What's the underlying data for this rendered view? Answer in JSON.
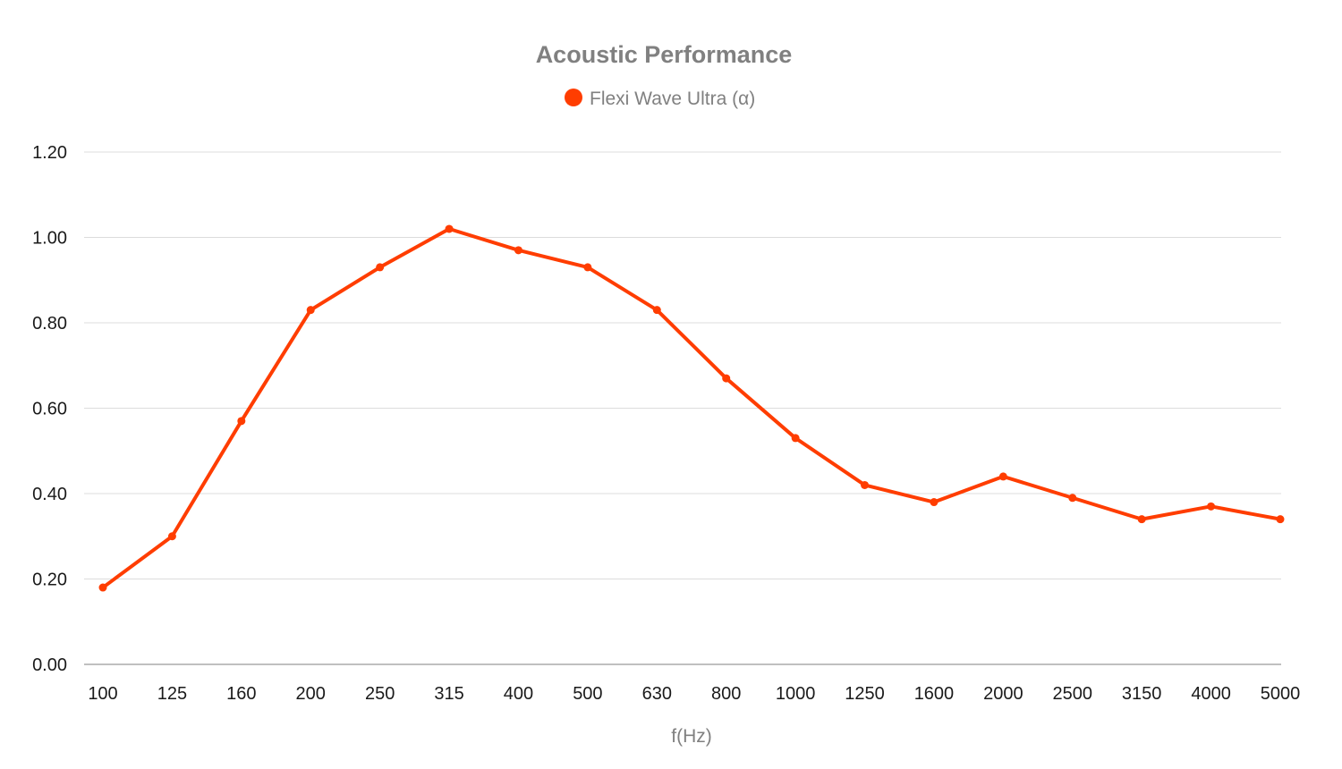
{
  "colors": {
    "series": "#ff3d00",
    "grid": "#dcdcdc",
    "text_muted": "#808080",
    "text": "#1a1a1a"
  },
  "chart_data": {
    "type": "line",
    "title": "Acoustic Performance",
    "xlabel": "f(Hz)",
    "ylabel": "",
    "categories": [
      "100",
      "125",
      "160",
      "200",
      "250",
      "315",
      "400",
      "500",
      "630",
      "800",
      "1000",
      "1250",
      "1600",
      "2000",
      "2500",
      "3150",
      "4000",
      "5000"
    ],
    "series": [
      {
        "name": "Flexi Wave Ultra (α)",
        "values": [
          0.18,
          0.3,
          0.57,
          0.83,
          0.93,
          1.02,
          0.97,
          0.93,
          0.83,
          0.67,
          0.53,
          0.42,
          0.38,
          0.44,
          0.39,
          0.34,
          0.37,
          0.34
        ]
      }
    ],
    "ylim": [
      0,
      1.2
    ],
    "yticks": [
      "0.00",
      "0.20",
      "0.40",
      "0.60",
      "0.80",
      "1.00",
      "1.20"
    ],
    "ytick_values": [
      0,
      0.2,
      0.4,
      0.6,
      0.8,
      1.0,
      1.2
    ],
    "grid": true,
    "legend_position": "top-center"
  }
}
